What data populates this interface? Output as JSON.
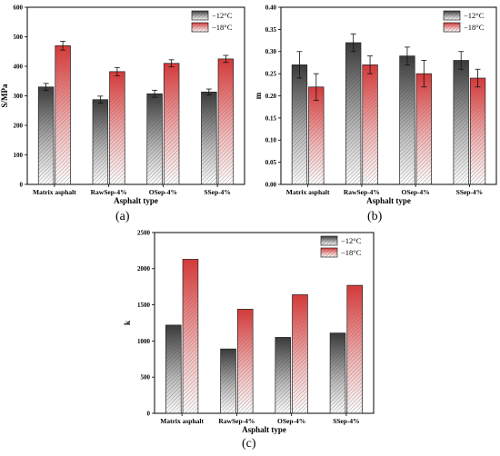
{
  "colors": {
    "minus12": "#3a3a3a",
    "minus18": "#d33a3a"
  },
  "panels": [
    {
      "label": "(a)"
    },
    {
      "label": "(b)"
    },
    {
      "label": "(c)"
    }
  ],
  "chart_data": [
    {
      "type": "bar",
      "title": "",
      "xlabel": "Asphalt type",
      "ylabel": "S/MPa",
      "ylim": [
        0,
        600
      ],
      "yticks": [
        0,
        100,
        200,
        300,
        400,
        500,
        600
      ],
      "ytick_labels": [
        "0",
        "100",
        "200",
        "300",
        "400",
        "500",
        "600"
      ],
      "categories": [
        "Matrix asphalt",
        "RawSep-4%",
        "OSep-4%",
        "SSep-4%"
      ],
      "legend_position": "top-right",
      "error_bars": true,
      "series": [
        {
          "name": "−12°C",
          "values": [
            330,
            287,
            307,
            313
          ],
          "errors": [
            12,
            12,
            12,
            10
          ]
        },
        {
          "name": "−18°C",
          "values": [
            470,
            382,
            410,
            425
          ],
          "errors": [
            15,
            14,
            12,
            12
          ]
        }
      ]
    },
    {
      "type": "bar",
      "title": "",
      "xlabel": "Asphalt type",
      "ylabel": "m",
      "ylim": [
        0,
        0.4
      ],
      "yticks": [
        0,
        0.05,
        0.1,
        0.15,
        0.2,
        0.25,
        0.3,
        0.35,
        0.4
      ],
      "ytick_labels": [
        "0.00",
        "0.05",
        "0.10",
        "0.15",
        "0.20",
        "0.25",
        "0.30",
        "0.35",
        "0.40"
      ],
      "categories": [
        "Matrix asphalt",
        "RawSep-4%",
        "OSep-4%",
        "SSep-4%"
      ],
      "legend_position": "top-right",
      "error_bars": true,
      "series": [
        {
          "name": "−12°C",
          "values": [
            0.27,
            0.32,
            0.29,
            0.28
          ],
          "errors": [
            0.03,
            0.02,
            0.02,
            0.02
          ]
        },
        {
          "name": "−18°C",
          "values": [
            0.22,
            0.27,
            0.25,
            0.24
          ],
          "errors": [
            0.03,
            0.02,
            0.03,
            0.02
          ]
        }
      ]
    },
    {
      "type": "bar",
      "title": "",
      "xlabel": "Asphalt type",
      "ylabel": "k",
      "ylim": [
        0,
        2500
      ],
      "yticks": [
        0,
        500,
        1000,
        1500,
        2000,
        2500
      ],
      "ytick_labels": [
        "0",
        "500",
        "1000",
        "1500",
        "2000",
        "2500"
      ],
      "categories": [
        "Matrix asphalt",
        "RawSep-4%",
        "OSep-4%",
        "SSep-4%"
      ],
      "legend_position": "top-right",
      "error_bars": false,
      "series": [
        {
          "name": "−12°C",
          "values": [
            1220,
            890,
            1050,
            1110
          ]
        },
        {
          "name": "−18°C",
          "values": [
            2130,
            1440,
            1640,
            1770
          ]
        }
      ]
    }
  ]
}
